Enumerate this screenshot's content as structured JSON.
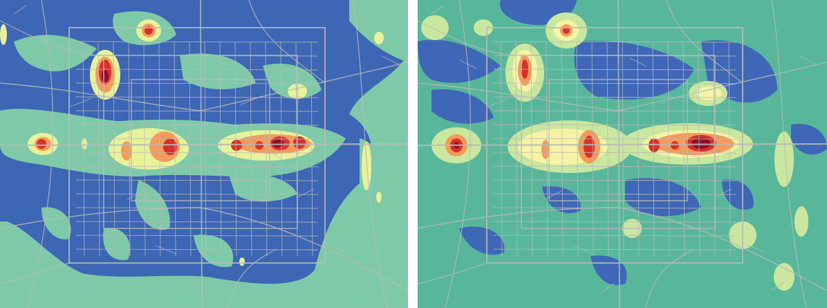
{
  "maps": [
    {
      "id": "left",
      "colors": {
        "base": "#7ecaa8",
        "low": "#3d66b5",
        "mid": "#e7f29a",
        "midHigh": "#fdeba0",
        "high": "#f59a5a",
        "peak": "#d7302a",
        "core": "#8e0f2a",
        "road": "#b8b8b8"
      }
    },
    {
      "id": "right",
      "colors": {
        "base": "#58b79b",
        "low": "#3f67b7",
        "mid": "#c9e79e",
        "midHigh": "#f7f3a6",
        "high": "#f59a5a",
        "peak": "#d7302a",
        "core": "#8e0f2a",
        "road": "#b8b8b8"
      }
    }
  ]
}
